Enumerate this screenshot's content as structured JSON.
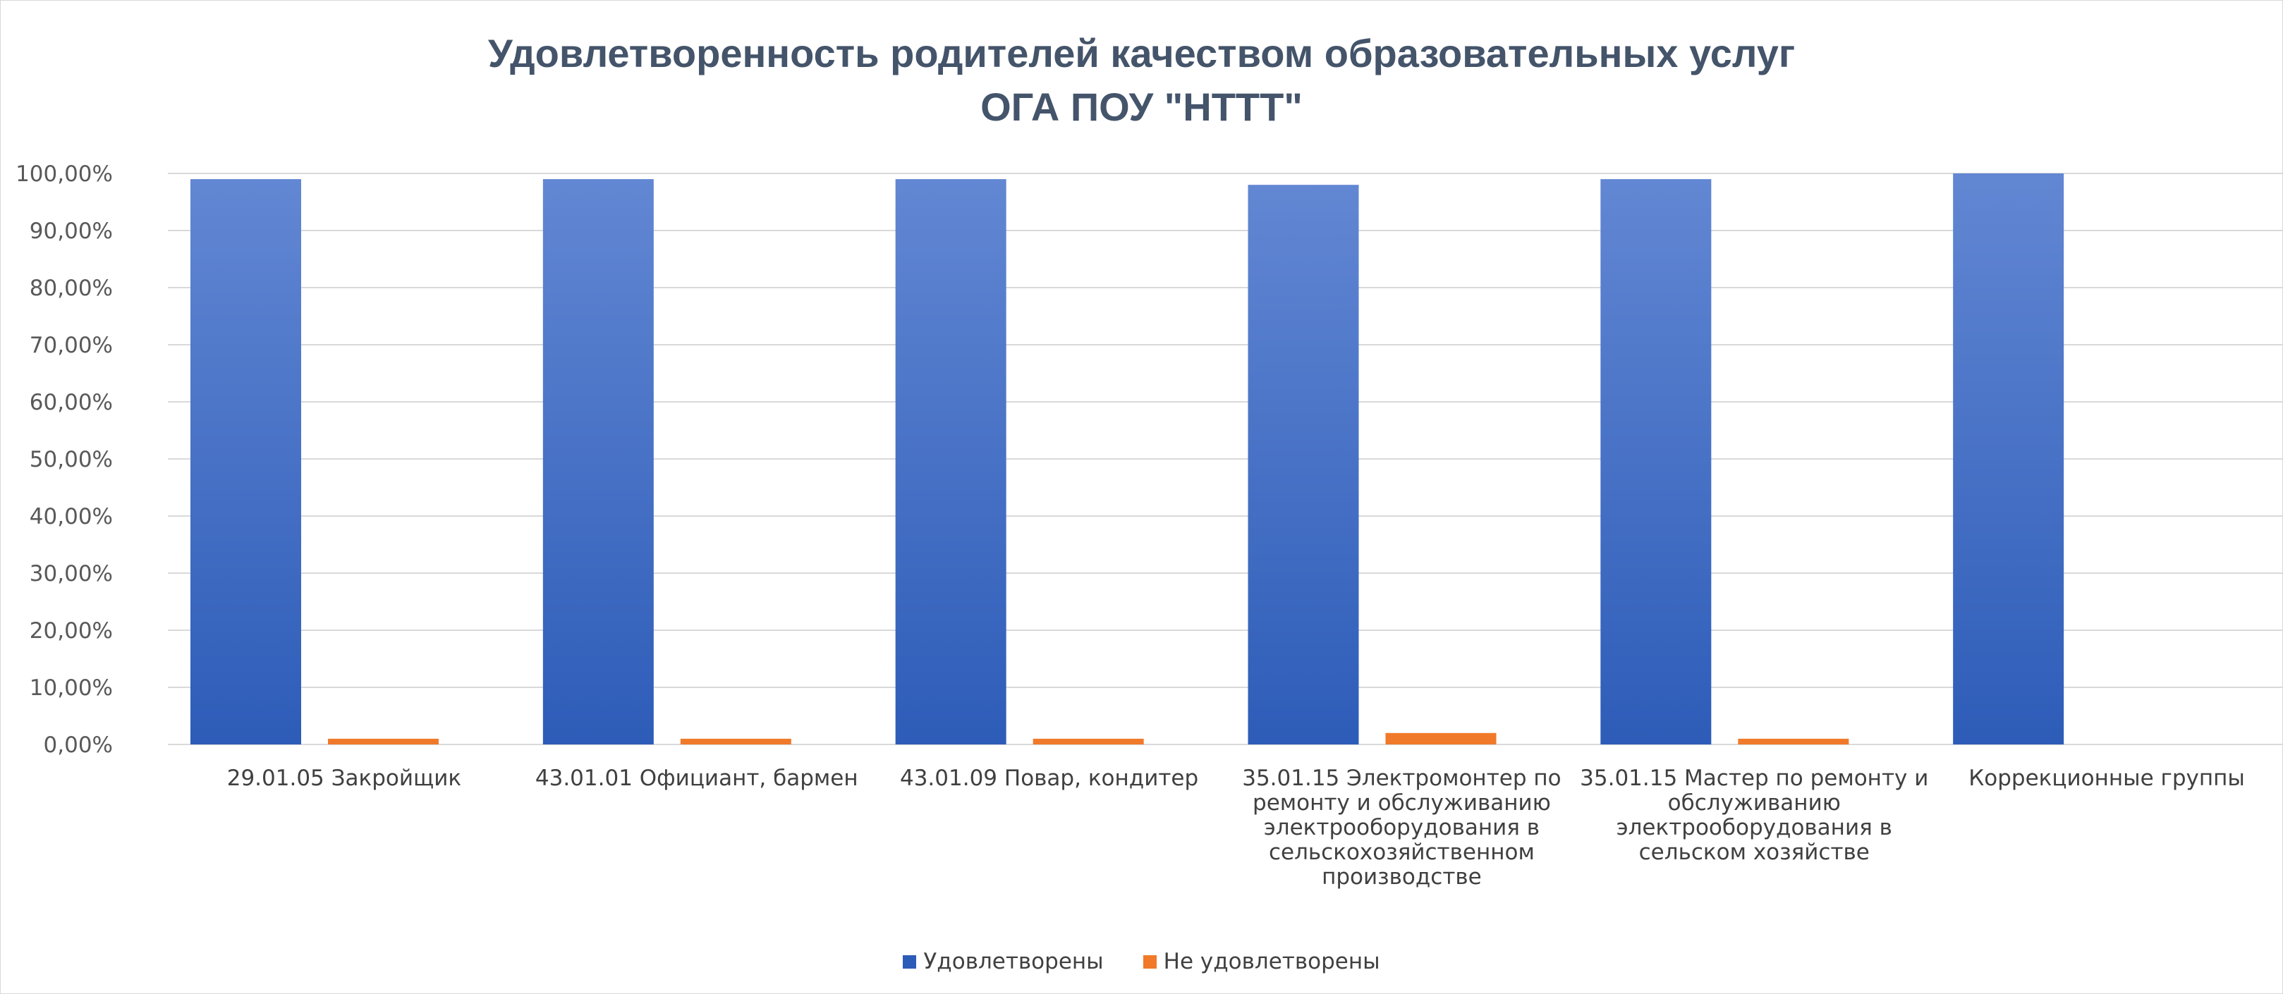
{
  "colors": {
    "satisfied_top": "#6287d3",
    "satisfied_bottom": "#2d5cb8",
    "dissatisfied": "#f07a2a",
    "grid": "#d9d9d9",
    "title": "#44546a"
  },
  "chart_data": {
    "type": "bar",
    "title": "Удовлетворенность родителей качеством образовательных услуг",
    "subtitle": "ОГА ПОУ \"НТТТ\"",
    "xlabel": "",
    "ylabel": "",
    "ylim": [
      0,
      1
    ],
    "yticks": [
      "0,00%",
      "10,00%",
      "20,00%",
      "30,00%",
      "40,00%",
      "50,00%",
      "60,00%",
      "70,00%",
      "80,00%",
      "90,00%",
      "100,00%"
    ],
    "grid": true,
    "legend_position": "bottom",
    "categories": [
      [
        "29.01.05 Закройщик"
      ],
      [
        "43.01.01 Официант, бармен"
      ],
      [
        "43.01.09 Повар, кондитер"
      ],
      [
        "35.01.15 Электромонтер по",
        "ремонту и обслуживанию",
        "электрооборудования в",
        "сельскохозяйственном",
        "производстве"
      ],
      [
        "35.01.15 Мастер по ремонту и",
        "обслуживанию",
        "электрооборудования в",
        "сельском хозяйстве"
      ],
      [
        "Коррекционные группы"
      ]
    ],
    "series": [
      {
        "name": "Удовлетворены",
        "values": [
          0.99,
          0.99,
          0.99,
          0.98,
          0.99,
          1.0
        ]
      },
      {
        "name": "Не удовлетворены",
        "values": [
          0.01,
          0.01,
          0.01,
          0.02,
          0.01,
          0.0
        ]
      }
    ]
  }
}
